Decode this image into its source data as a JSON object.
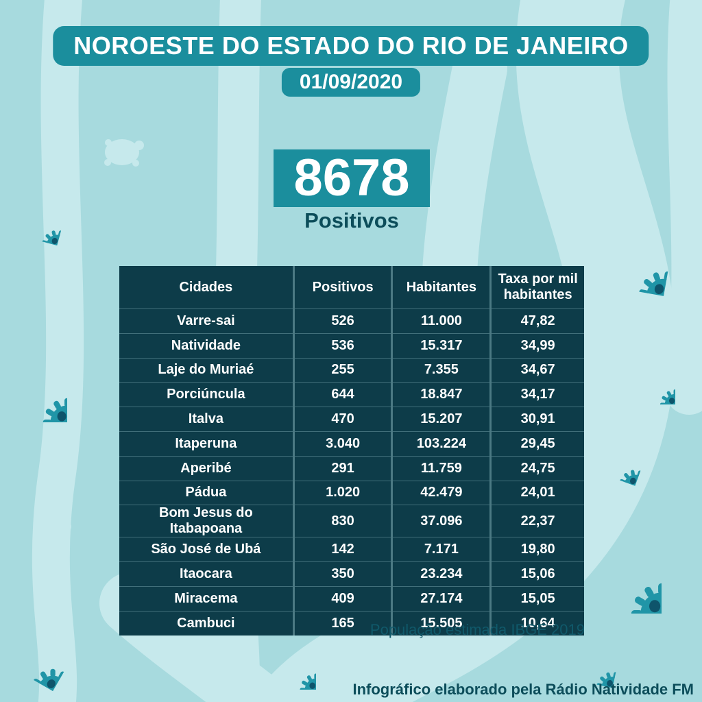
{
  "header": {
    "title": "NOROESTE DO ESTADO DO RIO DE JANEIRO",
    "date": "01/09/2020"
  },
  "summary": {
    "value": "8678",
    "label": "Positivos"
  },
  "table": {
    "headers": [
      "Cidades",
      "Positivos",
      "Habitantes",
      "Taxa por mil habitantes"
    ],
    "rows": [
      [
        "Varre-sai",
        "526",
        "11.000",
        "47,82"
      ],
      [
        "Natividade",
        "536",
        "15.317",
        "34,99"
      ],
      [
        "Laje do Muriaé",
        "255",
        "7.355",
        "34,67"
      ],
      [
        "Porciúncula",
        "644",
        "18.847",
        "34,17"
      ],
      [
        "Italva",
        "470",
        "15.207",
        "30,91"
      ],
      [
        "Itaperuna",
        "3.040",
        "103.224",
        "29,45"
      ],
      [
        "Aperibé",
        "291",
        "11.759",
        "24,75"
      ],
      [
        "Pádua",
        "1.020",
        "42.479",
        "24,01"
      ],
      [
        "Bom Jesus do Itabapoana",
        "830",
        "37.096",
        "22,37"
      ],
      [
        "São José de Ubá",
        "142",
        "7.171",
        "19,80"
      ],
      [
        "Itaocara",
        "350",
        "23.234",
        "15,06"
      ],
      [
        "Miracema",
        "409",
        "27.174",
        "15,05"
      ],
      [
        "Cambuci",
        "165",
        "15.505",
        "10,64"
      ]
    ]
  },
  "notes": {
    "population_source": "População estimada IBGE 2019",
    "credit": "Infográfico elaborado pela Rádio Natividade FM"
  },
  "icons": {
    "decoration": "virus-icon"
  },
  "colors": {
    "background": "#a7dade",
    "wave": "#c6e9ec",
    "accent_teal": "#1b8e9d",
    "table_background": "#0d3c49",
    "dark_text": "#0c4d5a",
    "virus_body": "#2095a7",
    "virus_spot": "#0e546b",
    "white": "#ffffff"
  },
  "chart_data": {
    "type": "table",
    "title": "NOROESTE DO ESTADO DO RIO DE JANEIRO",
    "date": "01/09/2020",
    "total_positives": 8678,
    "total_label": "Positivos",
    "columns": [
      "Cidades",
      "Positivos",
      "Habitantes",
      "Taxa por mil habitantes"
    ],
    "rows": [
      [
        "Varre-sai",
        526,
        11000,
        47.82
      ],
      [
        "Natividade",
        536,
        15317,
        34.99
      ],
      [
        "Laje do Muriaé",
        255,
        7355,
        34.67
      ],
      [
        "Porciúncula",
        644,
        18847,
        34.17
      ],
      [
        "Italva",
        470,
        15207,
        30.91
      ],
      [
        "Itaperuna",
        3040,
        103224,
        29.45
      ],
      [
        "Aperibé",
        291,
        11759,
        24.75
      ],
      [
        "Pádua",
        1020,
        42479,
        24.01
      ],
      [
        "Bom Jesus do Itabapoana",
        830,
        37096,
        22.37
      ],
      [
        "São José de Ubá",
        142,
        7171,
        19.8
      ],
      [
        "Itaocara",
        350,
        23234,
        15.06
      ],
      [
        "Miracema",
        409,
        27174,
        15.05
      ],
      [
        "Cambuci",
        165,
        15505,
        10.64
      ]
    ],
    "footnotes": [
      "População estimada IBGE 2019",
      "Infográfico elaborado pela Rádio Natividade FM"
    ]
  }
}
